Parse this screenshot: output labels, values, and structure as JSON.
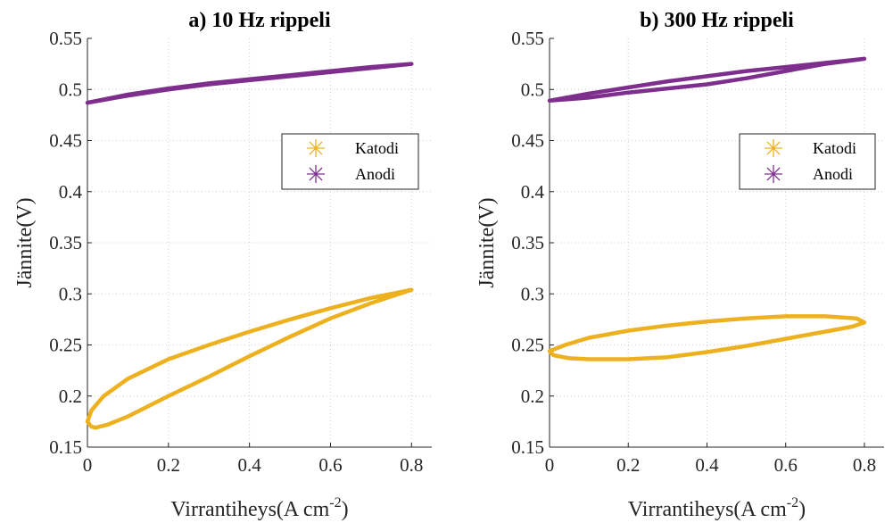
{
  "chart_data": [
    {
      "type": "line",
      "title": "a) 10 Hz rippeli",
      "xlabel": "Virrantiheys(A cm",
      "xlabel_sup": "-2",
      "xlabel_end": ")",
      "ylabel": "Jännite(V)",
      "xlim": [
        0,
        0.85
      ],
      "ylim": [
        0.15,
        0.55
      ],
      "xticks": [
        0,
        0.2,
        0.4,
        0.6,
        0.8
      ],
      "xtick_labels": [
        "0",
        "0.2",
        "0.4",
        "0.6",
        "0.8"
      ],
      "yticks": [
        0.15,
        0.2,
        0.25,
        0.3,
        0.35,
        0.4,
        0.45,
        0.5,
        0.55
      ],
      "ytick_labels": [
        "0.15",
        "0.2",
        "0.25",
        "0.3",
        "0.35",
        "0.4",
        "0.45",
        "0.5",
        "0.55"
      ],
      "grid": true,
      "legend_position": "right",
      "series": [
        {
          "name": "Katodi",
          "color": "#EDB120",
          "marker": "asterisk",
          "x": [
            0.8,
            0.7,
            0.6,
            0.5,
            0.4,
            0.3,
            0.2,
            0.1,
            0.04,
            0.01,
            0.0,
            0.01,
            0.02,
            0.05,
            0.1,
            0.2,
            0.3,
            0.4,
            0.5,
            0.6,
            0.7,
            0.8
          ],
          "y": [
            0.304,
            0.296,
            0.286,
            0.275,
            0.263,
            0.25,
            0.236,
            0.217,
            0.2,
            0.186,
            0.175,
            0.17,
            0.169,
            0.172,
            0.18,
            0.2,
            0.219,
            0.239,
            0.258,
            0.276,
            0.291,
            0.304
          ]
        },
        {
          "name": "Anodi",
          "color": "#7E2F8E",
          "marker": "asterisk",
          "x": [
            0.0,
            0.1,
            0.2,
            0.3,
            0.4,
            0.5,
            0.6,
            0.7,
            0.8,
            0.7,
            0.6,
            0.5,
            0.4,
            0.3,
            0.2,
            0.1,
            0.0
          ],
          "y": [
            0.487,
            0.495,
            0.501,
            0.506,
            0.51,
            0.514,
            0.518,
            0.522,
            0.525,
            0.521,
            0.517,
            0.513,
            0.509,
            0.505,
            0.5,
            0.494,
            0.487
          ]
        }
      ]
    },
    {
      "type": "line",
      "title": "b) 300 Hz rippeli",
      "xlabel": "Virrantiheys(A cm",
      "xlabel_sup": "-2",
      "xlabel_end": ")",
      "ylabel": "Jännite(V)",
      "xlim": [
        0,
        0.85
      ],
      "ylim": [
        0.15,
        0.55
      ],
      "xticks": [
        0,
        0.2,
        0.4,
        0.6,
        0.8
      ],
      "xtick_labels": [
        "0",
        "0.2",
        "0.4",
        "0.6",
        "0.8"
      ],
      "yticks": [
        0.15,
        0.2,
        0.25,
        0.3,
        0.35,
        0.4,
        0.45,
        0.5,
        0.55
      ],
      "ytick_labels": [
        "0.15",
        "0.2",
        "0.25",
        "0.3",
        "0.35",
        "0.4",
        "0.45",
        "0.5",
        "0.55"
      ],
      "grid": true,
      "legend_position": "right",
      "series": [
        {
          "name": "Katodi",
          "color": "#EDB120",
          "marker": "asterisk",
          "x": [
            0.8,
            0.78,
            0.7,
            0.6,
            0.5,
            0.4,
            0.3,
            0.2,
            0.1,
            0.04,
            0.0,
            0.01,
            0.05,
            0.1,
            0.2,
            0.3,
            0.4,
            0.5,
            0.6,
            0.7,
            0.77,
            0.8
          ],
          "y": [
            0.272,
            0.276,
            0.278,
            0.278,
            0.276,
            0.273,
            0.269,
            0.264,
            0.257,
            0.25,
            0.244,
            0.24,
            0.237,
            0.236,
            0.236,
            0.238,
            0.243,
            0.249,
            0.256,
            0.263,
            0.268,
            0.272
          ]
        },
        {
          "name": "Anodi",
          "color": "#7E2F8E",
          "marker": "asterisk",
          "x": [
            0.0,
            0.1,
            0.2,
            0.3,
            0.4,
            0.5,
            0.6,
            0.7,
            0.8,
            0.7,
            0.6,
            0.5,
            0.4,
            0.3,
            0.2,
            0.1,
            0.0
          ],
          "y": [
            0.489,
            0.496,
            0.502,
            0.508,
            0.513,
            0.518,
            0.522,
            0.526,
            0.53,
            0.525,
            0.518,
            0.511,
            0.505,
            0.501,
            0.497,
            0.492,
            0.489
          ]
        }
      ]
    }
  ]
}
